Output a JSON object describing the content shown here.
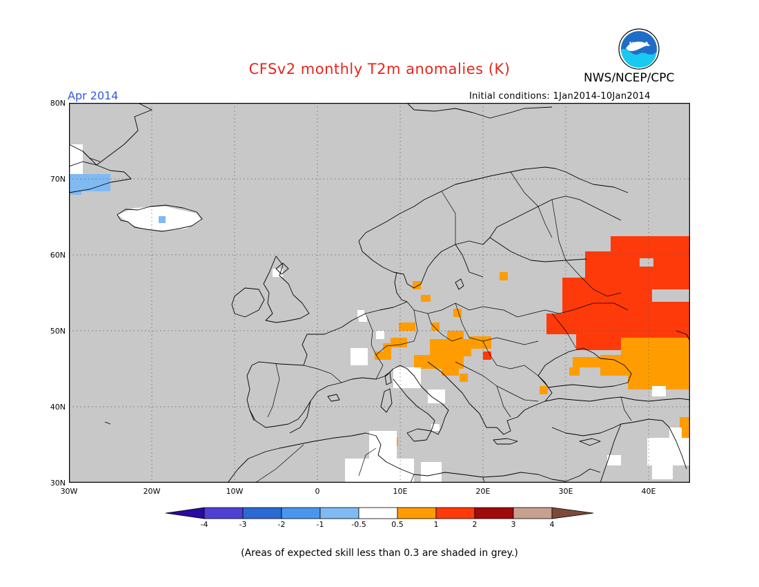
{
  "title": "CFSv2 monthly T2m anomalies (K)",
  "agency": "NWS/NCEP/CPC",
  "logo_text": "NOAA",
  "valid_month": "Apr 2014",
  "initial_conditions": "Initial conditions: 1Jan2014-10Jan2014",
  "footnote": "(Areas of expected skill less than 0.3 are shaded in grey.)",
  "map": {
    "projection": "lat-lon",
    "lon_range": [
      -30,
      45
    ],
    "lat_range": [
      30,
      80
    ],
    "lat_labels": [
      "80N",
      "70N",
      "60N",
      "50N",
      "40N",
      "30N"
    ],
    "lon_labels": [
      "30W",
      "20W",
      "10W",
      "0",
      "10E",
      "20E",
      "30E",
      "40E"
    ],
    "gridlines": "dotted",
    "low_skill_fill": "#c8c8c8",
    "anomaly_regions": [
      {
        "area": "East Greenland coast",
        "class": "-1 to -0.5",
        "color": "#7fb4f0"
      },
      {
        "area": "Iceland",
        "class": "-0.5 to 0.5",
        "color": "#ffffff"
      },
      {
        "area": "Western Russia",
        "class": "1 to 2",
        "color": "#ff3a0a"
      },
      {
        "area": "Central Europe / Alps",
        "class": "0.5 to 1",
        "color": "#ff9d00"
      },
      {
        "area": "Black Sea / Caspian",
        "class": "0.5 to 1",
        "color": "#ff9d00"
      },
      {
        "area": "Tunisia / North Africa",
        "class": "-0.5 to 0.5",
        "color": "#ffffff"
      }
    ]
  },
  "colorbar": {
    "labels": [
      "-4",
      "-3",
      "-2",
      "-1",
      "-0.5",
      "0.5",
      "1",
      "2",
      "3",
      "4"
    ],
    "colors": [
      "#2a0aa0",
      "#5040d2",
      "#2a6ad2",
      "#4a96ee",
      "#80baf2",
      "#ffffff",
      "#ff9d00",
      "#ff3a0a",
      "#a00a0a",
      "#c8a090",
      "#7d4a3a"
    ],
    "units": "K"
  }
}
